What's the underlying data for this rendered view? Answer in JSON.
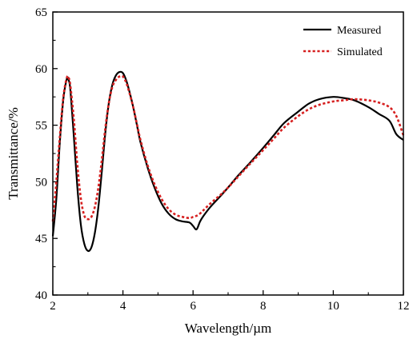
{
  "chart_data": {
    "type": "line",
    "xlabel": "Wavelength/µm",
    "ylabel": "Transmittance/%",
    "xlim": [
      2,
      12
    ],
    "ylim": [
      40,
      65
    ],
    "xticks": [
      2,
      4,
      6,
      8,
      10,
      12
    ],
    "yticks": [
      40,
      45,
      50,
      55,
      60,
      65
    ],
    "grid": false,
    "legend_position": "top-right",
    "series": [
      {
        "name": "Measured",
        "color": "#000000",
        "style": "solid",
        "x": [
          2.0,
          2.1,
          2.2,
          2.3,
          2.4,
          2.45,
          2.5,
          2.6,
          2.7,
          2.8,
          2.9,
          3.0,
          3.1,
          3.2,
          3.3,
          3.4,
          3.5,
          3.6,
          3.7,
          3.8,
          3.9,
          4.0,
          4.1,
          4.2,
          4.3,
          4.4,
          4.5,
          4.7,
          4.9,
          5.1,
          5.3,
          5.5,
          5.7,
          5.9,
          6.0,
          6.1,
          6.2,
          6.3,
          6.5,
          6.8,
          7.0,
          7.3,
          7.6,
          8.0,
          8.3,
          8.6,
          9.0,
          9.3,
          9.6,
          10.0,
          10.3,
          10.6,
          11.0,
          11.3,
          11.6,
          11.8,
          12.0
        ],
        "y": [
          45.2,
          48.5,
          53.5,
          57.3,
          59.1,
          59.0,
          58.1,
          54.0,
          49.5,
          46.2,
          44.5,
          43.9,
          44.2,
          45.5,
          47.8,
          51.0,
          54.4,
          57.0,
          58.6,
          59.4,
          59.7,
          59.6,
          58.9,
          57.8,
          56.5,
          55.0,
          53.5,
          51.3,
          49.5,
          48.1,
          47.2,
          46.7,
          46.5,
          46.4,
          46.1,
          45.8,
          46.5,
          47.0,
          47.8,
          48.8,
          49.5,
          50.6,
          51.6,
          53.0,
          54.1,
          55.2,
          56.2,
          56.9,
          57.3,
          57.5,
          57.4,
          57.2,
          56.6,
          56.0,
          55.4,
          54.2,
          53.7
        ]
      },
      {
        "name": "Simulated",
        "color": "#d62020",
        "style": "dotted",
        "x": [
          2.0,
          2.1,
          2.2,
          2.3,
          2.4,
          2.45,
          2.5,
          2.6,
          2.7,
          2.8,
          2.9,
          3.0,
          3.1,
          3.2,
          3.3,
          3.4,
          3.5,
          3.6,
          3.7,
          3.8,
          3.9,
          4.0,
          4.1,
          4.2,
          4.3,
          4.4,
          4.5,
          4.7,
          4.9,
          5.1,
          5.3,
          5.5,
          5.7,
          5.9,
          6.0,
          6.1,
          6.2,
          6.3,
          6.5,
          6.8,
          7.0,
          7.3,
          7.6,
          8.0,
          8.3,
          8.6,
          9.0,
          9.3,
          9.6,
          10.0,
          10.3,
          10.6,
          11.0,
          11.3,
          11.6,
          11.8,
          12.0
        ],
        "y": [
          46.5,
          50.0,
          54.0,
          57.5,
          59.2,
          59.2,
          58.5,
          55.5,
          51.5,
          48.5,
          47.0,
          46.7,
          46.9,
          47.8,
          49.5,
          52.0,
          54.8,
          57.0,
          58.4,
          59.0,
          59.3,
          59.3,
          58.7,
          57.7,
          56.5,
          55.1,
          53.7,
          51.5,
          49.8,
          48.5,
          47.6,
          47.1,
          46.9,
          46.8,
          46.9,
          47.0,
          47.2,
          47.5,
          48.1,
          48.9,
          49.5,
          50.5,
          51.5,
          52.8,
          53.8,
          54.8,
          55.8,
          56.4,
          56.8,
          57.1,
          57.2,
          57.3,
          57.2,
          57.0,
          56.6,
          55.8,
          54.1
        ]
      }
    ]
  }
}
